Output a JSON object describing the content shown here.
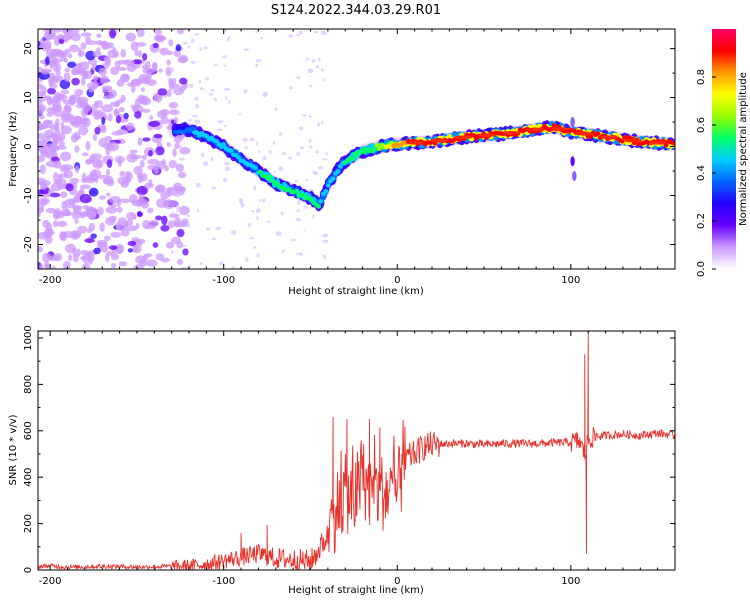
{
  "figure": {
    "title": "S124.2022.344.03.29.R01"
  },
  "chart_data": [
    {
      "type": "heatmap",
      "xlabel": "Height of straight line (km)",
      "ylabel": "Frequency (Hz)",
      "xlim": [
        -207,
        160
      ],
      "ylim": [
        -25,
        24
      ],
      "xticks": [
        -200,
        -100,
        0,
        100
      ],
      "yticks": [
        -20,
        -10,
        0,
        10,
        20
      ],
      "colorbar": {
        "label": "Normalized spectral amplitude",
        "range": [
          0,
          1
        ],
        "ticks": [
          0.0,
          0.2,
          0.4,
          0.6,
          0.8
        ],
        "tick_labels": [
          "0.0",
          "0.2",
          "0.4",
          "0.6",
          "0.8"
        ],
        "colormap": [
          "#ffffff",
          "#cc99ff",
          "#6600ff",
          "#2200ff",
          "#0066ff",
          "#00ccff",
          "#00ff66",
          "#99ff00",
          "#ffff00",
          "#ff9900",
          "#ff0000",
          "#ff0066"
        ]
      },
      "trace": {
        "x": [
          -207,
          -190,
          -170,
          -150,
          -135,
          -120,
          -110,
          -100,
          -90,
          -80,
          -70,
          -60,
          -50,
          -45,
          -40,
          -35,
          -30,
          -20,
          -10,
          0,
          20,
          40,
          60,
          80,
          90,
          100,
          110,
          120,
          140,
          160
        ],
        "y": [
          4,
          3.5,
          3,
          3,
          3,
          3.5,
          2,
          0,
          -2.5,
          -5,
          -7.5,
          -9,
          -10.5,
          -12,
          -8,
          -5,
          -3,
          -1,
          0,
          0.5,
          1,
          2,
          2.5,
          3.5,
          4,
          3,
          2.5,
          2,
          1,
          0.5
        ],
        "amplitude": [
          0.25,
          0.25,
          0.3,
          0.3,
          0.3,
          0.4,
          0.45,
          0.45,
          0.45,
          0.5,
          0.55,
          0.5,
          0.55,
          0.5,
          0.45,
          0.45,
          0.5,
          0.55,
          0.6,
          0.85,
          0.9,
          0.95,
          0.95,
          0.95,
          0.9,
          0.9,
          0.95,
          0.95,
          0.95,
          0.95
        ]
      },
      "noise_region_x": [
        -207,
        -130
      ]
    },
    {
      "type": "line",
      "xlabel": "Height of straight line (km)",
      "ylabel": "SNR (10 * v/v)",
      "xlim": [
        -207,
        160
      ],
      "ylim": [
        0,
        1030
      ],
      "xticks": [
        -200,
        -100,
        0,
        100
      ],
      "yticks": [
        0,
        200,
        400,
        600,
        800,
        1000
      ],
      "color": "#e8312a",
      "series": [
        {
          "name": "",
          "x": [
            -207,
            -200,
            -190,
            -180,
            -170,
            -160,
            -150,
            -140,
            -130,
            -120,
            -110,
            -100,
            -90,
            -80,
            -70,
            -60,
            -50,
            -45,
            -40,
            -35,
            -30,
            -25,
            -20,
            -15,
            -10,
            -5,
            0,
            5,
            10,
            15,
            20,
            30,
            40,
            50,
            60,
            70,
            80,
            90,
            100,
            105,
            108,
            110,
            112,
            115,
            120,
            130,
            140,
            150,
            160
          ],
          "y": [
            15,
            18,
            12,
            14,
            16,
            15,
            13,
            14,
            16,
            18,
            25,
            40,
            55,
            70,
            50,
            45,
            35,
            90,
            150,
            270,
            330,
            300,
            400,
            330,
            340,
            330,
            340,
            480,
            500,
            530,
            540,
            545,
            545,
            540,
            545,
            545,
            545,
            548,
            550,
            555,
            500,
            560,
            570,
            575,
            580,
            585,
            580,
            590,
            580
          ],
          "spikes": [
            {
              "x": -90,
              "y": 160
            },
            {
              "x": -75,
              "y": 195
            },
            {
              "x": -37,
              "y": 660
            },
            {
              "x": -29,
              "y": 650
            },
            {
              "x": -23,
              "y": 510
            },
            {
              "x": -16,
              "y": 650
            },
            {
              "x": -10,
              "y": 615
            },
            {
              "x": 108,
              "y": 930
            },
            {
              "x": 110,
              "y": 1030
            },
            {
              "x": 109,
              "y": 70
            }
          ]
        }
      ]
    }
  ]
}
